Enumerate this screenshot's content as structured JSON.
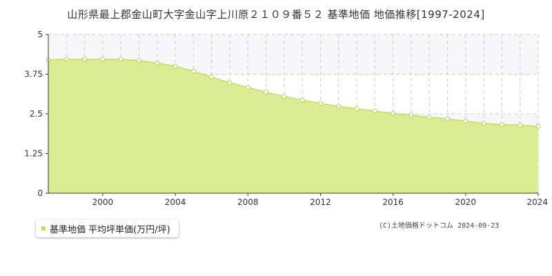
{
  "title": "山形県最上郡金山町大字金山字上川原２１０９番５２ 基準地価 地価推移[1997-2024]",
  "legend": {
    "label": "基準地価 平均坪単価(万円/坪)"
  },
  "copyright": "(C)土地価格ドットコム 2024-09-23",
  "colors": {
    "fill": "#dbec93",
    "line": "#c5dc5a",
    "marker_fill": "#ffffff",
    "marker_stroke": "#b9d04f",
    "grid": "#cccccc",
    "band": "#f7f7f9"
  },
  "chart_data": {
    "type": "area",
    "title": "山形県最上郡金山町大字金山字上川原２１０９番５２ 基準地価 地価推移[1997-2024]",
    "xlabel": "",
    "ylabel": "",
    "xlim": [
      1997,
      2024
    ],
    "ylim": [
      0,
      5
    ],
    "x_ticks": [
      2000,
      2004,
      2008,
      2012,
      2016,
      2020,
      2024
    ],
    "y_ticks": [
      0,
      1.25,
      2.5,
      3.75,
      5
    ],
    "y_tick_labels": [
      "0",
      "1.25",
      "2.5",
      "3.75",
      "5"
    ],
    "grid": true,
    "legend_position": "bottom-left",
    "series": [
      {
        "name": "基準地価 平均坪単価(万円/坪)",
        "x": [
          1997,
          1998,
          1999,
          2000,
          2001,
          2002,
          2003,
          2004,
          2005,
          2006,
          2007,
          2008,
          2009,
          2010,
          2011,
          2012,
          2013,
          2014,
          2015,
          2016,
          2017,
          2018,
          2019,
          2020,
          2021,
          2022,
          2023,
          2024
        ],
        "values": [
          4.2,
          4.22,
          4.22,
          4.22,
          4.22,
          4.18,
          4.1,
          4.0,
          3.84,
          3.66,
          3.48,
          3.33,
          3.18,
          3.05,
          2.93,
          2.83,
          2.74,
          2.66,
          2.59,
          2.51,
          2.46,
          2.39,
          2.34,
          2.27,
          2.2,
          2.16,
          2.14,
          2.11
        ]
      }
    ]
  }
}
